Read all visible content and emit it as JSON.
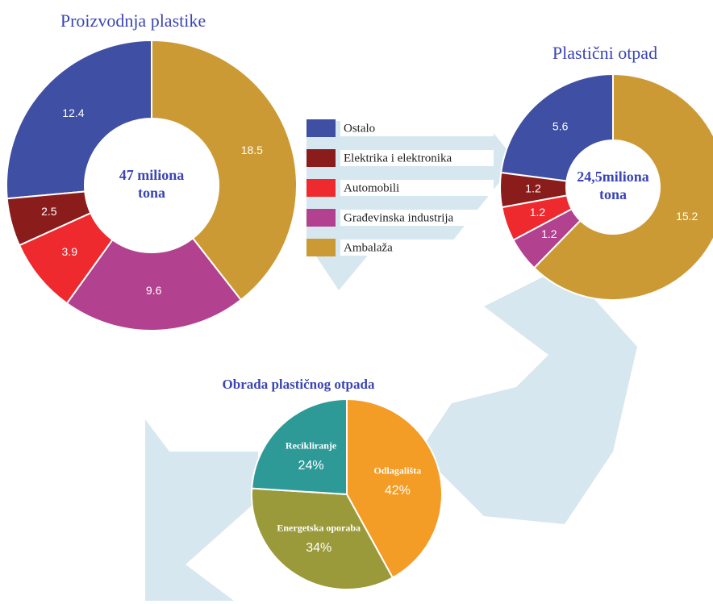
{
  "chart_data": [
    {
      "type": "donut",
      "title": "Proizvodnja plastike",
      "center_text": [
        "47 miliona",
        "tona"
      ],
      "categories": [
        "Ostalo",
        "Elektrika i elektronika",
        "Automobili",
        "Građevinska industrija",
        "Ambalaža"
      ],
      "values": [
        12.4,
        2.5,
        3.9,
        9.6,
        18.5
      ],
      "colors": [
        "#3f4fa3",
        "#8a1c1c",
        "#ee2a2e",
        "#b2418f",
        "#cc9a35"
      ]
    },
    {
      "type": "donut",
      "title": "Plastični otpad",
      "center_text": [
        "24,5miliona",
        "tona"
      ],
      "categories": [
        "Ostalo",
        "Elektrika i elektronika",
        "Automobili",
        "Građevinska industrija",
        "Ambalaža"
      ],
      "values": [
        5.6,
        1.2,
        1.2,
        1.2,
        15.2
      ],
      "colors": [
        "#3f4fa3",
        "#8a1c1c",
        "#ee2a2e",
        "#b2418f",
        "#cc9a35"
      ]
    },
    {
      "type": "pie",
      "title": "Obrada plastičnog otpada",
      "categories": [
        "Odlagališta",
        "Energetska oporaba",
        "Recikliranje"
      ],
      "values": [
        42,
        34,
        24
      ],
      "value_labels": [
        "42%",
        "34%",
        "24%"
      ],
      "colors": [
        "#f39c26",
        "#9b9a3a",
        "#2e9a98"
      ]
    }
  ]
}
